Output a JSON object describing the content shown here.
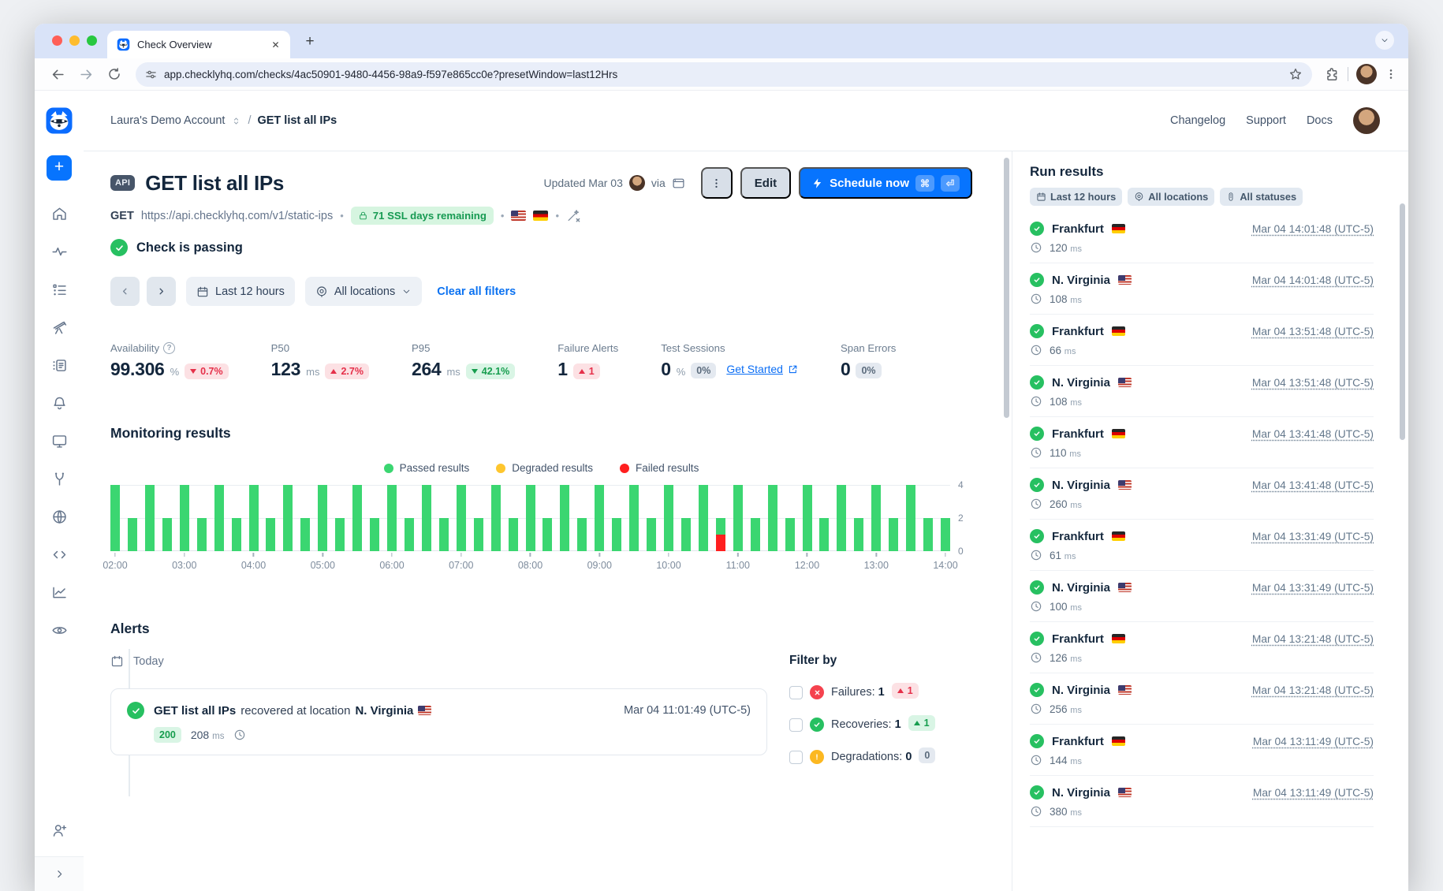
{
  "browser": {
    "tab_title": "Check Overview",
    "url": "app.checklyhq.com/checks/4ac50901-9480-4456-98a9-f597e865cc0e?presetWindow=last12Hrs"
  },
  "header": {
    "account": "Laura's Demo Account",
    "separator": "/",
    "page_title": "GET list all IPs",
    "links": [
      "Changelog",
      "Support",
      "Docs"
    ]
  },
  "check": {
    "type_badge": "API",
    "title": "GET list all IPs",
    "updated_label": "Updated Mar 03",
    "via_label": "via",
    "edit_label": "Edit",
    "schedule_label": "Schedule now",
    "shortcut_cmd": "⌘",
    "shortcut_enter": "⏎",
    "method": "GET",
    "request_url": "https://api.checklyhq.com/v1/static-ips",
    "ssl_badge": "71 SSL days remaining",
    "status_text": "Check is passing"
  },
  "filters": {
    "time_range": "Last 12 hours",
    "locations": "All locations",
    "clear_label": "Clear all filters"
  },
  "stats": [
    {
      "label": "Availability",
      "value": "99.306",
      "unit": "%",
      "delta": "0.7%",
      "direction": "down",
      "tone": "negative"
    },
    {
      "label": "P50",
      "value": "123",
      "unit": "ms",
      "delta": "2.7%",
      "direction": "up",
      "tone": "negative"
    },
    {
      "label": "P95",
      "value": "264",
      "unit": "ms",
      "delta": "42.1%",
      "direction": "down",
      "tone": "positive"
    },
    {
      "label": "Failure Alerts",
      "value": "1",
      "delta": "1",
      "direction": "up",
      "tone": "negative"
    },
    {
      "label": "Test Sessions",
      "value": "0",
      "unit": "%",
      "delta": "0%",
      "tone": "neutral",
      "link_label": "Get Started"
    },
    {
      "label": "Span Errors",
      "value": "0",
      "delta": "0%",
      "tone": "neutral"
    }
  ],
  "monitoring": {
    "title": "Monitoring results",
    "legend": [
      {
        "label": "Passed results",
        "color": "#3bd671"
      },
      {
        "label": "Degraded results",
        "color": "#fec62e"
      },
      {
        "label": "Failed results",
        "color": "#ff1f1f"
      }
    ],
    "chart_data": {
      "type": "bar",
      "stacked": true,
      "title": "Monitoring results",
      "x": [
        "02:00",
        "02:15",
        "02:30",
        "02:45",
        "03:00",
        "03:15",
        "03:30",
        "03:45",
        "04:00",
        "04:15",
        "04:30",
        "04:45",
        "05:00",
        "05:15",
        "05:30",
        "05:45",
        "06:00",
        "06:15",
        "06:30",
        "06:45",
        "07:00",
        "07:15",
        "07:30",
        "07:45",
        "08:00",
        "08:15",
        "08:30",
        "08:45",
        "09:00",
        "09:15",
        "09:30",
        "09:45",
        "10:00",
        "10:15",
        "10:30",
        "10:45",
        "11:00",
        "11:15",
        "11:30",
        "11:45",
        "12:00",
        "12:15",
        "12:30",
        "12:45",
        "13:00",
        "13:15",
        "13:30",
        "13:45",
        "14:00"
      ],
      "series": [
        {
          "name": "Passed results",
          "color": "#3bd671",
          "values": [
            4,
            2,
            4,
            2,
            4,
            2,
            4,
            2,
            4,
            2,
            4,
            2,
            4,
            2,
            4,
            2,
            4,
            2,
            4,
            2,
            4,
            2,
            4,
            2,
            4,
            2,
            4,
            2,
            4,
            2,
            4,
            2,
            4,
            2,
            4,
            1,
            4,
            2,
            4,
            2,
            4,
            2,
            4,
            2,
            4,
            2,
            4,
            2,
            2
          ]
        },
        {
          "name": "Failed results",
          "color": "#ff1f1f",
          "values": [
            0,
            0,
            0,
            0,
            0,
            0,
            0,
            0,
            0,
            0,
            0,
            0,
            0,
            0,
            0,
            0,
            0,
            0,
            0,
            0,
            0,
            0,
            0,
            0,
            0,
            0,
            0,
            0,
            0,
            0,
            0,
            0,
            0,
            0,
            0,
            1,
            0,
            0,
            0,
            0,
            0,
            0,
            0,
            0,
            0,
            0,
            0,
            0,
            0
          ]
        }
      ],
      "xticks": [
        "02:00",
        "03:00",
        "04:00",
        "05:00",
        "06:00",
        "07:00",
        "08:00",
        "09:00",
        "10:00",
        "11:00",
        "12:00",
        "13:00",
        "14:00"
      ],
      "yticks": [
        "4",
        "2",
        "0"
      ],
      "ylim": [
        0,
        4
      ],
      "grid": true,
      "legend_position": "top-center"
    }
  },
  "alerts": {
    "title": "Alerts",
    "group_label": "Today",
    "items": [
      {
        "check_name": "GET list all IPs",
        "event": "recovered at location",
        "location": "N. Virginia",
        "flag": "us",
        "timestamp": "Mar 04 11:01:49 (UTC-5)",
        "status_code": "200",
        "response_ms": "208",
        "ms_unit": "ms"
      }
    ],
    "filter_by": {
      "title": "Filter by",
      "options": [
        {
          "label": "Failures:",
          "count": "1",
          "delta": "1",
          "direction": "up",
          "tone": "negative"
        },
        {
          "label": "Recoveries:",
          "count": "1",
          "delta": "1",
          "direction": "up",
          "tone": "positive"
        },
        {
          "label": "Degradations:",
          "count": "0",
          "delta": "0",
          "tone": "neutral"
        }
      ]
    }
  },
  "run_results": {
    "title": "Run results",
    "chips": [
      {
        "label": "Last 12 hours"
      },
      {
        "label": "All locations"
      },
      {
        "label": "All statuses"
      }
    ],
    "ms_unit": "ms",
    "rows": [
      {
        "location": "Frankfurt",
        "flag": "de",
        "time": "Mar 04 14:01:48 (UTC-5)",
        "ms": "120"
      },
      {
        "location": "N. Virginia",
        "flag": "us",
        "time": "Mar 04 14:01:48 (UTC-5)",
        "ms": "108"
      },
      {
        "location": "Frankfurt",
        "flag": "de",
        "time": "Mar 04 13:51:48 (UTC-5)",
        "ms": "66"
      },
      {
        "location": "N. Virginia",
        "flag": "us",
        "time": "Mar 04 13:51:48 (UTC-5)",
        "ms": "108"
      },
      {
        "location": "Frankfurt",
        "flag": "de",
        "time": "Mar 04 13:41:48 (UTC-5)",
        "ms": "110"
      },
      {
        "location": "N. Virginia",
        "flag": "us",
        "time": "Mar 04 13:41:48 (UTC-5)",
        "ms": "260"
      },
      {
        "location": "Frankfurt",
        "flag": "de",
        "time": "Mar 04 13:31:49 (UTC-5)",
        "ms": "61"
      },
      {
        "location": "N. Virginia",
        "flag": "us",
        "time": "Mar 04 13:31:49 (UTC-5)",
        "ms": "100"
      },
      {
        "location": "Frankfurt",
        "flag": "de",
        "time": "Mar 04 13:21:48 (UTC-5)",
        "ms": "126"
      },
      {
        "location": "N. Virginia",
        "flag": "us",
        "time": "Mar 04 13:21:48 (UTC-5)",
        "ms": "256"
      },
      {
        "location": "Frankfurt",
        "flag": "de",
        "time": "Mar 04 13:11:49 (UTC-5)",
        "ms": "144"
      },
      {
        "location": "N. Virginia",
        "flag": "us",
        "time": "Mar 04 13:11:49 (UTC-5)",
        "ms": "380"
      }
    ]
  }
}
